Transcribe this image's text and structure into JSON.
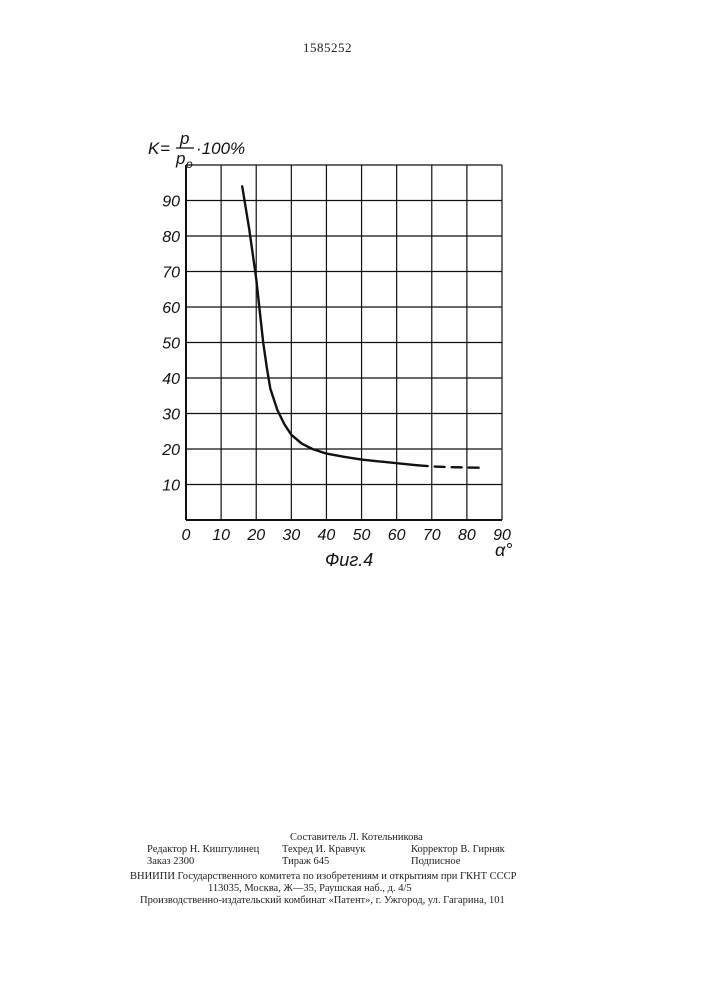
{
  "header": {
    "patent_number": "1585252"
  },
  "chart_data": {
    "type": "line",
    "title": "",
    "ylabel": {
      "k": "K",
      "eq": "=",
      "num": "p",
      "den": "p",
      "den_sub": "o",
      "suffix": "·100%"
    },
    "xlabel": "α°",
    "caption": "Фиг.4",
    "xlim": [
      0,
      90
    ],
    "ylim": [
      0,
      100
    ],
    "grid": true,
    "x_ticks": [
      "0",
      "10",
      "20",
      "30",
      "40",
      "50",
      "60",
      "70",
      "80",
      "90"
    ],
    "y_ticks": [
      "10",
      "20",
      "30",
      "40",
      "50",
      "60",
      "70",
      "80",
      "90"
    ],
    "series": [
      {
        "style": "solid",
        "x": [
          16,
          18,
          20,
          21,
          22,
          23,
          24,
          26,
          28,
          30,
          33,
          36,
          40,
          45,
          50,
          55,
          60,
          66
        ],
        "y": [
          94,
          82,
          68,
          59,
          50,
          43,
          37,
          31,
          27,
          24,
          21.5,
          20,
          18.7,
          17.8,
          17,
          16.5,
          16,
          15.4
        ]
      },
      {
        "style": "dashed",
        "x": [
          66,
          70,
          75,
          80,
          85
        ],
        "y": [
          15.4,
          15.1,
          14.9,
          14.8,
          14.7
        ]
      }
    ]
  },
  "imprint": {
    "compiler": "Составитель Л. Котельникова",
    "editor": "Редактор Н. Киштулинец",
    "techred": "Техред И. Кравчук",
    "corrector": "Корректор В. Гирняк",
    "order": "Заказ 2300",
    "circulation": "Тираж 645",
    "subscription": "Подписное",
    "org_line": "ВНИИПИ Государственного комитета по изобретениям и открытиям при ГКНТ СССР",
    "address_line": "113035, Москва, Ж—35, Раушская наб., д. 4/5",
    "printer_line": "Производственно-издательский комбинат «Патент», г. Ужгород, ул. Гагарина, 101"
  }
}
